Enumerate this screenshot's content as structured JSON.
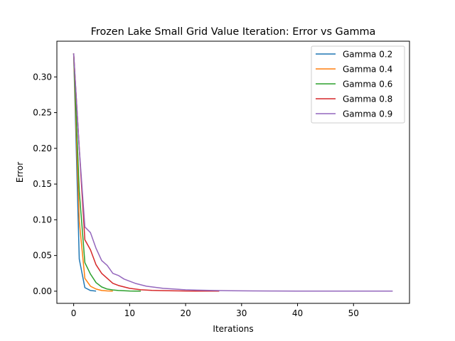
{
  "chart_data": {
    "type": "line",
    "title": "Frozen Lake Small Grid Value Iteration: Error vs Gamma",
    "xlabel": "Iterations",
    "ylabel": "Error",
    "xlim": [
      -3,
      60
    ],
    "ylim": [
      -0.017,
      0.35
    ],
    "xticks": [
      0,
      10,
      20,
      30,
      40,
      50
    ],
    "yticks": [
      0.0,
      0.05,
      0.1,
      0.15,
      0.2,
      0.25,
      0.3
    ],
    "ytick_labels": [
      "0.00",
      "0.05",
      "0.10",
      "0.15",
      "0.20",
      "0.25",
      "0.30"
    ],
    "grid": false,
    "legend_position": "top-right",
    "series": [
      {
        "name": "Gamma 0.2",
        "color": "#1f77b4",
        "x": [
          0,
          1,
          2,
          3,
          4
        ],
        "y": [
          0.333,
          0.045,
          0.005,
          0.001,
          0.0002
        ]
      },
      {
        "name": "Gamma 0.4",
        "color": "#ff7f0e",
        "x": [
          0,
          1,
          2,
          3,
          4,
          5,
          6,
          7
        ],
        "y": [
          0.333,
          0.098,
          0.018,
          0.007,
          0.003,
          0.001,
          0.0004,
          0.0001
        ]
      },
      {
        "name": "Gamma 0.6",
        "color": "#2ca02c",
        "x": [
          0,
          1,
          2,
          3,
          4,
          5,
          6,
          7,
          8,
          9,
          10,
          11,
          12
        ],
        "y": [
          0.333,
          0.14,
          0.04,
          0.024,
          0.012,
          0.006,
          0.003,
          0.0018,
          0.001,
          0.0006,
          0.0003,
          0.0002,
          0.0001
        ]
      },
      {
        "name": "Gamma 0.8",
        "color": "#d62728",
        "x": [
          0,
          1,
          2,
          3,
          4,
          5,
          6,
          7,
          8,
          9,
          10,
          11,
          12,
          14,
          16,
          18,
          20,
          22,
          24,
          26
        ],
        "y": [
          0.333,
          0.2,
          0.072,
          0.058,
          0.037,
          0.025,
          0.018,
          0.011,
          0.008,
          0.006,
          0.004,
          0.003,
          0.002,
          0.0012,
          0.0008,
          0.0005,
          0.0003,
          0.0002,
          0.0001,
          0.0001
        ]
      },
      {
        "name": "Gamma 0.9",
        "color": "#9467bd",
        "x": [
          0,
          1,
          2,
          3,
          4,
          5,
          6,
          7,
          8,
          9,
          10,
          11,
          12,
          13,
          14,
          15,
          16,
          18,
          20,
          22,
          25,
          28,
          32,
          36,
          40,
          45,
          50,
          57
        ],
        "y": [
          0.333,
          0.2,
          0.09,
          0.082,
          0.06,
          0.043,
          0.036,
          0.025,
          0.022,
          0.017,
          0.014,
          0.011,
          0.009,
          0.007,
          0.006,
          0.005,
          0.004,
          0.003,
          0.002,
          0.0015,
          0.001,
          0.0007,
          0.0004,
          0.0003,
          0.0002,
          0.0001,
          0.0001,
          0.0001
        ]
      }
    ]
  }
}
